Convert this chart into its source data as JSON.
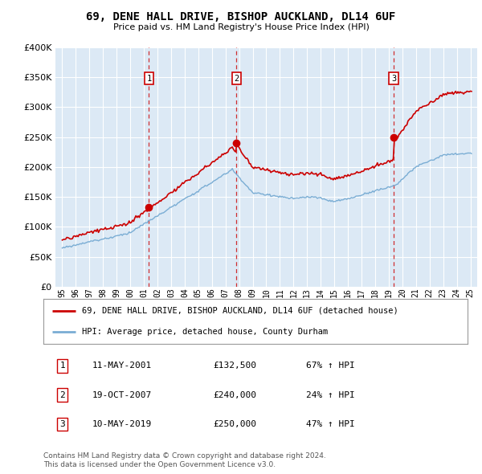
{
  "title": "69, DENE HALL DRIVE, BISHOP AUCKLAND, DL14 6UF",
  "subtitle": "Price paid vs. HM Land Registry's House Price Index (HPI)",
  "legend_line1": "69, DENE HALL DRIVE, BISHOP AUCKLAND, DL14 6UF (detached house)",
  "legend_line2": "HPI: Average price, detached house, County Durham",
  "sale1_date": "11-MAY-2001",
  "sale1_price": 132500,
  "sale1_pct": "67% ↑ HPI",
  "sale1_year": 2001.37,
  "sale2_date": "19-OCT-2007",
  "sale2_price": 240000,
  "sale2_pct": "24% ↑ HPI",
  "sale2_year": 2007.8,
  "sale3_date": "10-MAY-2019",
  "sale3_price": 250000,
  "sale3_pct": "47% ↑ HPI",
  "sale3_year": 2019.37,
  "footer1": "Contains HM Land Registry data © Crown copyright and database right 2024.",
  "footer2": "This data is licensed under the Open Government Licence v3.0.",
  "red_color": "#cc0000",
  "blue_color": "#7aadd4",
  "bg_color": "#dce9f5",
  "grid_color": "#ffffff",
  "ylim": [
    0,
    400000
  ],
  "yticks": [
    0,
    50000,
    100000,
    150000,
    200000,
    250000,
    300000,
    350000,
    400000
  ],
  "xmin": 1995,
  "xmax": 2025
}
